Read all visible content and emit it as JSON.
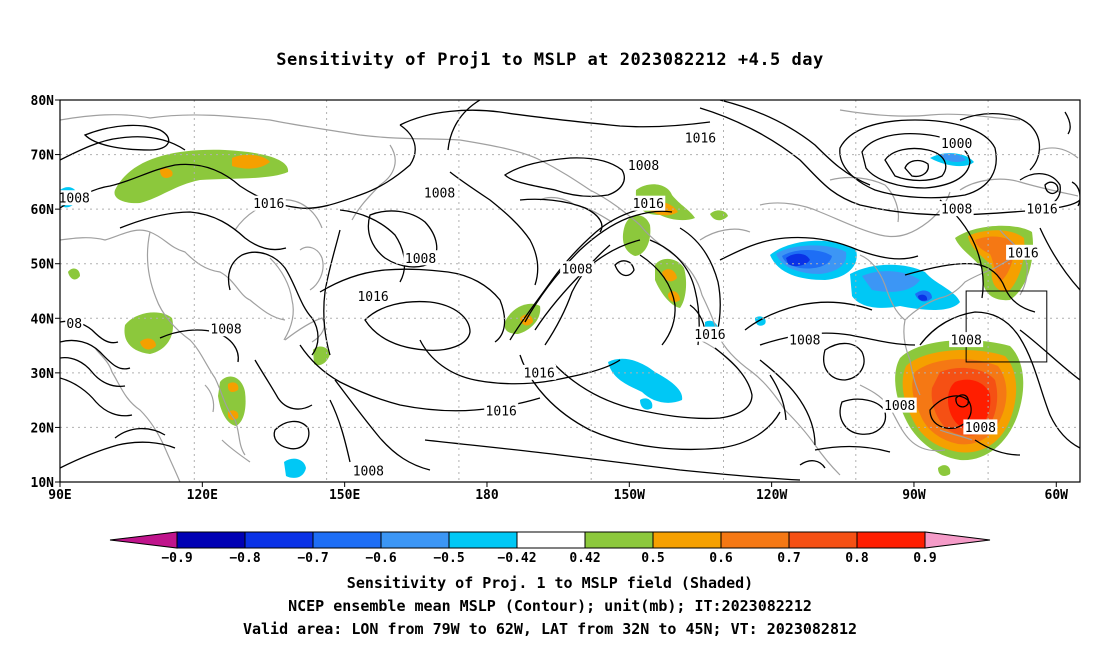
{
  "title": "Sensitivity of Proj1 to MSLP at 2023082212 +4.5 day",
  "map": {
    "lat_labels": [
      "80N",
      "70N",
      "60N",
      "50N",
      "40N",
      "30N",
      "20N",
      "10N"
    ],
    "lon_labels": [
      "90E",
      "120E",
      "150E",
      "180",
      "150W",
      "120W",
      "90W",
      "60W"
    ],
    "extent": {
      "lon_min": 90,
      "lon_max": 305,
      "lat_min": 10,
      "lat_max": 80
    },
    "valid_area": {
      "lon": [
        281,
        298
      ],
      "lat": [
        32,
        45
      ]
    },
    "contour_labels": [
      {
        "text": "1016",
        "lon": 225,
        "lat": 73
      },
      {
        "text": "1000",
        "lon": 279,
        "lat": 72
      },
      {
        "text": "1008",
        "lon": 93,
        "lat": 62
      },
      {
        "text": "1016",
        "lon": 134,
        "lat": 61
      },
      {
        "text": "1008",
        "lon": 170,
        "lat": 63
      },
      {
        "text": "1008",
        "lon": 213,
        "lat": 68
      },
      {
        "text": "1016",
        "lon": 214,
        "lat": 61
      },
      {
        "text": "1008",
        "lon": 279,
        "lat": 60
      },
      {
        "text": "1016",
        "lon": 297,
        "lat": 60
      },
      {
        "text": "1016",
        "lon": 293,
        "lat": 52
      },
      {
        "text": "1008",
        "lon": 166,
        "lat": 51
      },
      {
        "text": "1008",
        "lon": 199,
        "lat": 49
      },
      {
        "text": "1016",
        "lon": 156,
        "lat": 44
      },
      {
        "text": "08",
        "lon": 93,
        "lat": 39
      },
      {
        "text": "1008",
        "lon": 125,
        "lat": 38
      },
      {
        "text": "1016",
        "lon": 227,
        "lat": 37
      },
      {
        "text": "1008",
        "lon": 247,
        "lat": 36
      },
      {
        "text": "1008",
        "lon": 281,
        "lat": 36
      },
      {
        "text": "1016",
        "lon": 191,
        "lat": 30
      },
      {
        "text": "1016",
        "lon": 183,
        "lat": 23
      },
      {
        "text": "1008",
        "lon": 267,
        "lat": 24
      },
      {
        "text": "1008",
        "lon": 284,
        "lat": 20
      },
      {
        "text": "1008",
        "lon": 155,
        "lat": 12
      }
    ]
  },
  "colorbar": {
    "labels": [
      "-0.9",
      "-0.8",
      "-0.7",
      "-0.6",
      "-0.5",
      "-0.42",
      "0.42",
      "0.5",
      "0.6",
      "0.7",
      "0.8",
      "0.9"
    ],
    "colors": [
      "#0000b4",
      "#0a32e6",
      "#1e6ef5",
      "#3c96f5",
      "#00c8f5",
      "#ffffff",
      "#8cc83c",
      "#f5a000",
      "#f57814",
      "#f55014",
      "#ff1e00"
    ],
    "low_extend_color": "#c0148c",
    "high_extend_color": "#f59bc8"
  },
  "captions": [
    "Sensitivity of Proj. 1 to MSLP field (Shaded)",
    "NCEP ensemble mean MSLP (Contour); unit(mb); IT:2023082212",
    "Valid area: LON from 79W to 62W, LAT from 32N to 45N; VT: 2023082812"
  ]
}
